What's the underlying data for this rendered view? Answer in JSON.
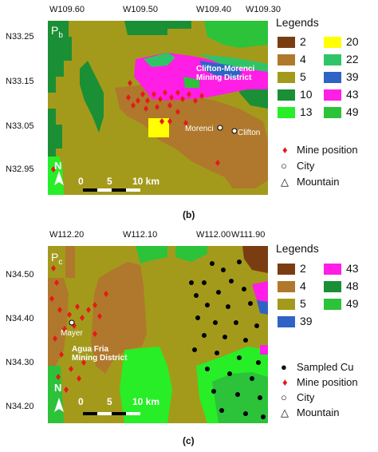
{
  "panel_b": {
    "caption": "(b)",
    "panel_id": "P",
    "panel_id_sub": "b",
    "x_ticks": [
      "W109.60",
      "W109.50",
      "W109.40",
      "W109.30"
    ],
    "y_ticks": [
      "N33.25",
      "N33.15",
      "N33.05",
      "N32.95"
    ],
    "district_label_1": "Clifton-Morenci",
    "district_label_2": "Mining District",
    "cities": [
      "Morenci",
      "Clifton"
    ],
    "north": "N",
    "scale": [
      "0",
      "5",
      "10 km"
    ],
    "legend_title": "Legends",
    "legend_items": [
      {
        "label": "2",
        "color": "#7a3d12"
      },
      {
        "label": "20",
        "color": "#ffff00"
      },
      {
        "label": "4",
        "color": "#b0782c"
      },
      {
        "label": "22",
        "color": "#2fc468"
      },
      {
        "label": "5",
        "color": "#a39a1c"
      },
      {
        "label": "39",
        "color": "#2f63c4"
      },
      {
        "label": "10",
        "color": "#1a8f35"
      },
      {
        "label": "43",
        "color": "#ff1ee6"
      },
      {
        "label": "13",
        "color": "#27ee27"
      },
      {
        "label": "49",
        "color": "#2cc23a"
      }
    ],
    "symbols": [
      "Mine position",
      "City",
      "Mountain"
    ]
  },
  "panel_c": {
    "caption": "(c)",
    "panel_id": "P",
    "panel_id_sub": "c",
    "x_ticks": [
      "W112.20",
      "W112.10",
      "W112.00",
      "W111.90"
    ],
    "y_ticks": [
      "N34.50",
      "N34.40",
      "N34.30",
      "N34.20"
    ],
    "district_label_1": "Agua Fria",
    "district_label_2": "Mining District",
    "cities": [
      "Mayer"
    ],
    "north": "N",
    "scale": [
      "0",
      "5",
      "10 km"
    ],
    "legend_title": "Legends",
    "legend_items": [
      {
        "label": "2",
        "color": "#7a3d12"
      },
      {
        "label": "43",
        "color": "#ff1ee6"
      },
      {
        "label": "4",
        "color": "#b0782c"
      },
      {
        "label": "48",
        "color": "#1a8f35"
      },
      {
        "label": "5",
        "color": "#a39a1c"
      },
      {
        "label": "49",
        "color": "#2cc23a"
      },
      {
        "label": "39",
        "color": "#2f63c4"
      }
    ],
    "symbols": [
      "Sampled Cu",
      "Mine position",
      "City",
      "Mountain"
    ]
  }
}
